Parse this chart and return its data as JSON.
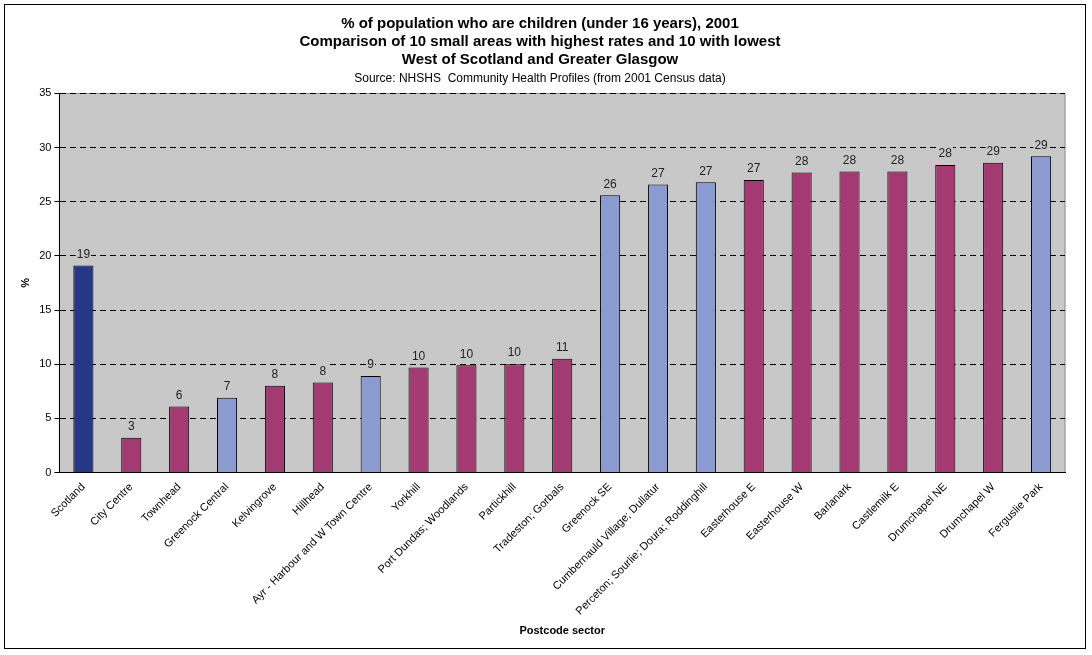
{
  "chart_data": {
    "type": "bar",
    "title": "% of population who are children (under 16 years), 2001\nComparison of 10 small areas with highest rates and 10 with lowest\nWest of Scotland and Greater Glasgow",
    "annotations": [
      "Source: NHSHS  Community Health Profiles (from 2001 Census data)"
    ],
    "xlabel": "Postcode sector",
    "ylabel": "%",
    "categories": [
      "Scotland",
      "City Centre",
      "Townhead",
      "Greenock Central",
      "Kelvingrove",
      "Hillhead",
      "Ayr - Harbour and W Town Centre",
      "Yorkhill",
      "Port Dundas; Woodlands",
      "Partickhill",
      "Tradeston; Gorbals",
      "Greenock SE",
      "Cumbernauld Village; Dullatur",
      "Perceton; Sourlie; Doura; Roddinghill",
      "Easterhouse E",
      "Easterhouse W",
      "Barlanark",
      "Castlemilk E",
      "Drumchapel NE",
      "Drumchapel W",
      "Ferguslie Park"
    ],
    "values": [
      19.1,
      3.2,
      6.1,
      6.9,
      8.0,
      8.3,
      8.9,
      9.7,
      9.9,
      10.0,
      10.5,
      25.6,
      26.6,
      26.8,
      27.0,
      27.7,
      27.8,
      27.8,
      28.4,
      28.6,
      29.2
    ],
    "value_labels": [
      "19",
      "3",
      "6",
      "7",
      "8",
      "8",
      "9",
      "10",
      "10",
      "10",
      "11",
      "26",
      "27",
      "27",
      "27",
      "28",
      "28",
      "28",
      "28",
      "29",
      "29"
    ],
    "colors": [
      "#253785",
      "#a33b72",
      "#a33b72",
      "#8b9bd0",
      "#a33b72",
      "#a33b72",
      "#8b9bd0",
      "#a33b72",
      "#a33b72",
      "#a33b72",
      "#a33b72",
      "#8b9bd0",
      "#8b9bd0",
      "#8b9bd0",
      "#a33b72",
      "#a33b72",
      "#a33b72",
      "#a33b72",
      "#a33b72",
      "#a33b72",
      "#8b9bd0"
    ],
    "ylim": [
      0,
      35
    ],
    "yticks": [
      0,
      5,
      10,
      15,
      20,
      25,
      30,
      35
    ],
    "grid": "y",
    "legend": false
  }
}
